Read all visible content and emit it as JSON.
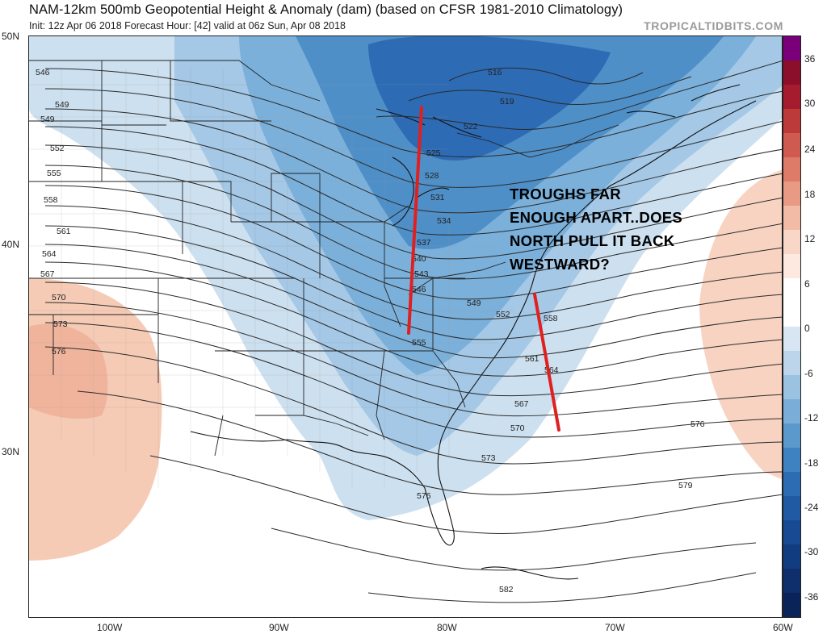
{
  "header": {
    "title": "NAM-12km 500mb Geopotential Height & Anomaly (dam) (based on CFSR 1981-2010 Climatology)",
    "subtitle": "Init: 12z Apr 06 2018   Forecast Hour: [42]   valid at 06z Sun, Apr 08 2018",
    "credit": "TROPICALTIDBITS.COM"
  },
  "axes": {
    "lat_labels": [
      "50N",
      "40N",
      "30N"
    ],
    "lon_labels": [
      "100W",
      "90W",
      "80W",
      "70W",
      "60W"
    ]
  },
  "colorbar": {
    "ticks": [
      "36",
      "30",
      "24",
      "18",
      "12",
      "6",
      "0",
      "-6",
      "-12",
      "-18",
      "-24",
      "-30",
      "-36"
    ],
    "colors": [
      "#7a007a",
      "#8b0f2a",
      "#a51c2e",
      "#bd3a3a",
      "#cf5a4f",
      "#dd7a68",
      "#e89a85",
      "#f2bba6",
      "#f8d6c8",
      "#fde9e0",
      "#ffffff",
      "#ffffff",
      "#d7e6f2",
      "#bcd5ea",
      "#9cc2e2",
      "#7aaed8",
      "#5b99cd",
      "#3f82c1",
      "#2b6cb3",
      "#1f5aa3",
      "#174a92",
      "#123c80",
      "#0e2f6c",
      "#0a2358"
    ]
  },
  "contour_labels": [
    "516",
    "519",
    "522",
    "525",
    "528",
    "531",
    "534",
    "537",
    "540",
    "543",
    "546",
    "549",
    "552",
    "555",
    "558",
    "561",
    "564",
    "567",
    "570",
    "573",
    "576",
    "579",
    "582"
  ],
  "annotation": {
    "lines": [
      "TROUGHS FAR",
      "ENOUGH APART..DOES",
      "NORTH PULL IT BACK",
      "WESTWARD?"
    ],
    "line_color": "#e02020"
  }
}
